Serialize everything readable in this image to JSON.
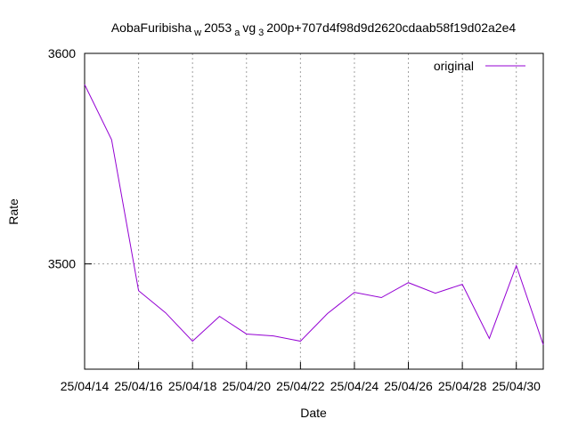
{
  "chart_data": {
    "type": "line",
    "title_parts": [
      "AobaFuribisha",
      "w",
      "2053",
      "a",
      "vg",
      "3",
      "200p+707d4f98d9d2620cdaab58f19d02a2e4"
    ],
    "xlabel": "Date",
    "ylabel": "Rate",
    "x": [
      "25/04/14",
      "25/04/15",
      "25/04/16",
      "25/04/17",
      "25/04/18",
      "25/04/19",
      "25/04/20",
      "25/04/21",
      "25/04/22",
      "25/04/23",
      "25/04/24",
      "25/04/25",
      "25/04/26",
      "25/04/27",
      "25/04/28",
      "25/04/29",
      "25/04/30",
      "25/05/01"
    ],
    "series": [
      {
        "name": "original",
        "color": "#9400d3",
        "values": [
          3585.2,
          3559,
          3487.3,
          3476.8,
          3463.3,
          3475.1,
          3466.7,
          3465.8,
          3463.3,
          3476.4,
          3486.5,
          3484,
          3491.1,
          3486.1,
          3490.3,
          3464.6,
          3499.2,
          3461.6
        ]
      }
    ],
    "xlim": [
      "25/04/14",
      "25/05/01"
    ],
    "xticks": [
      "25/04/14",
      "25/04/16",
      "25/04/18",
      "25/04/20",
      "25/04/22",
      "25/04/24",
      "25/04/26",
      "25/04/28",
      "25/04/30"
    ],
    "ylim": [
      3450,
      3600
    ],
    "yticks": [
      3500,
      3600
    ],
    "grid": true,
    "legend": "top-right"
  }
}
